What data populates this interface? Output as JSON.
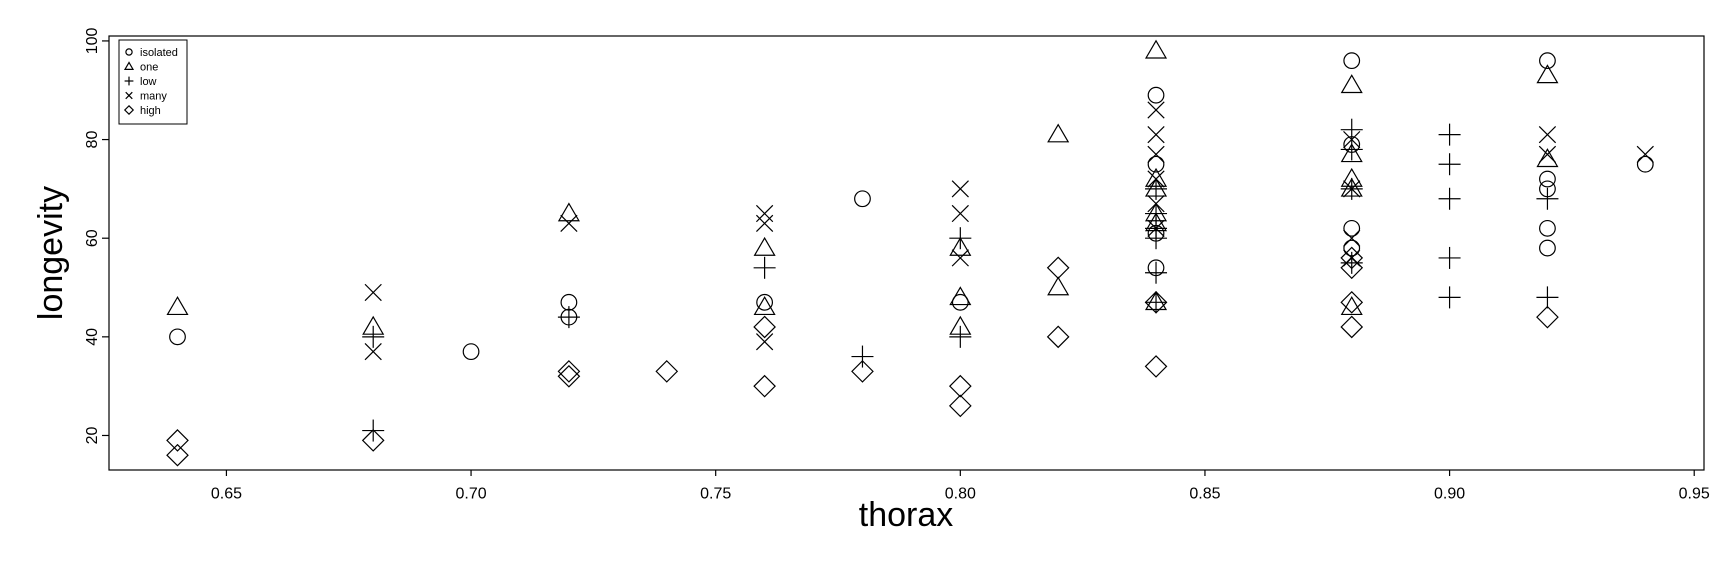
{
  "chart_data": {
    "type": "scatter",
    "xlabel": "thorax",
    "ylabel": "longevity",
    "xlim": [
      0.626,
      0.952
    ],
    "ylim": [
      13,
      101
    ],
    "xticks": [
      "0.65",
      "0.70",
      "0.75",
      "0.80",
      "0.85",
      "0.90",
      "0.95"
    ],
    "yticks": [
      "20",
      "40",
      "60",
      "80",
      "100"
    ],
    "grid": false,
    "legend_position": "top-left",
    "series": [
      {
        "name": "isolated",
        "marker": "circle",
        "x": [
          0.64,
          0.7,
          0.72,
          0.72,
          0.76,
          0.78,
          0.8,
          0.84,
          0.84,
          0.84,
          0.84,
          0.88,
          0.88,
          0.88,
          0.88,
          0.92,
          0.92,
          0.92,
          0.92,
          0.92,
          0.94
        ],
        "y": [
          40,
          37,
          47,
          44,
          47,
          68,
          47,
          89,
          75,
          61,
          54,
          96,
          79,
          62,
          58,
          96,
          72,
          70,
          62,
          58,
          75
        ]
      },
      {
        "name": "one",
        "marker": "triangle",
        "x": [
          0.64,
          0.68,
          0.72,
          0.76,
          0.76,
          0.8,
          0.8,
          0.8,
          0.82,
          0.82,
          0.84,
          0.84,
          0.84,
          0.84,
          0.84,
          0.84,
          0.88,
          0.88,
          0.88,
          0.88,
          0.88,
          0.92,
          0.92
        ],
        "y": [
          46,
          42,
          65,
          58,
          46,
          58,
          48,
          42,
          81,
          50,
          98,
          72,
          70,
          65,
          63,
          47,
          91,
          77,
          72,
          70,
          46,
          93,
          76
        ]
      },
      {
        "name": "low",
        "marker": "plus",
        "x": [
          0.68,
          0.68,
          0.72,
          0.76,
          0.78,
          0.8,
          0.8,
          0.84,
          0.84,
          0.84,
          0.84,
          0.84,
          0.84,
          0.88,
          0.88,
          0.88,
          0.88,
          0.9,
          0.9,
          0.9,
          0.9,
          0.9,
          0.92,
          0.92
        ],
        "y": [
          40,
          21,
          44,
          54,
          36,
          60,
          40,
          70,
          65,
          62,
          60,
          53,
          47,
          82,
          78,
          70,
          55,
          81,
          75,
          68,
          56,
          48,
          68,
          48
        ]
      },
      {
        "name": "many",
        "marker": "cross",
        "x": [
          0.68,
          0.68,
          0.72,
          0.76,
          0.76,
          0.76,
          0.8,
          0.8,
          0.8,
          0.84,
          0.84,
          0.84,
          0.84,
          0.84,
          0.84,
          0.88,
          0.88,
          0.88,
          0.88,
          0.92,
          0.92,
          0.94
        ],
        "y": [
          49,
          37,
          63,
          65,
          63,
          39,
          70,
          65,
          56,
          86,
          81,
          77,
          72,
          67,
          62,
          80,
          70,
          60,
          56,
          81,
          77,
          77
        ]
      },
      {
        "name": "high",
        "marker": "diamond",
        "x": [
          0.64,
          0.64,
          0.68,
          0.72,
          0.72,
          0.74,
          0.76,
          0.76,
          0.78,
          0.8,
          0.8,
          0.82,
          0.82,
          0.84,
          0.84,
          0.88,
          0.88,
          0.88,
          0.88,
          0.92
        ],
        "y": [
          19,
          16,
          19,
          33,
          32,
          33,
          42,
          30,
          33,
          30,
          26,
          54,
          40,
          47,
          34,
          56,
          54,
          47,
          42,
          44
        ]
      }
    ]
  }
}
